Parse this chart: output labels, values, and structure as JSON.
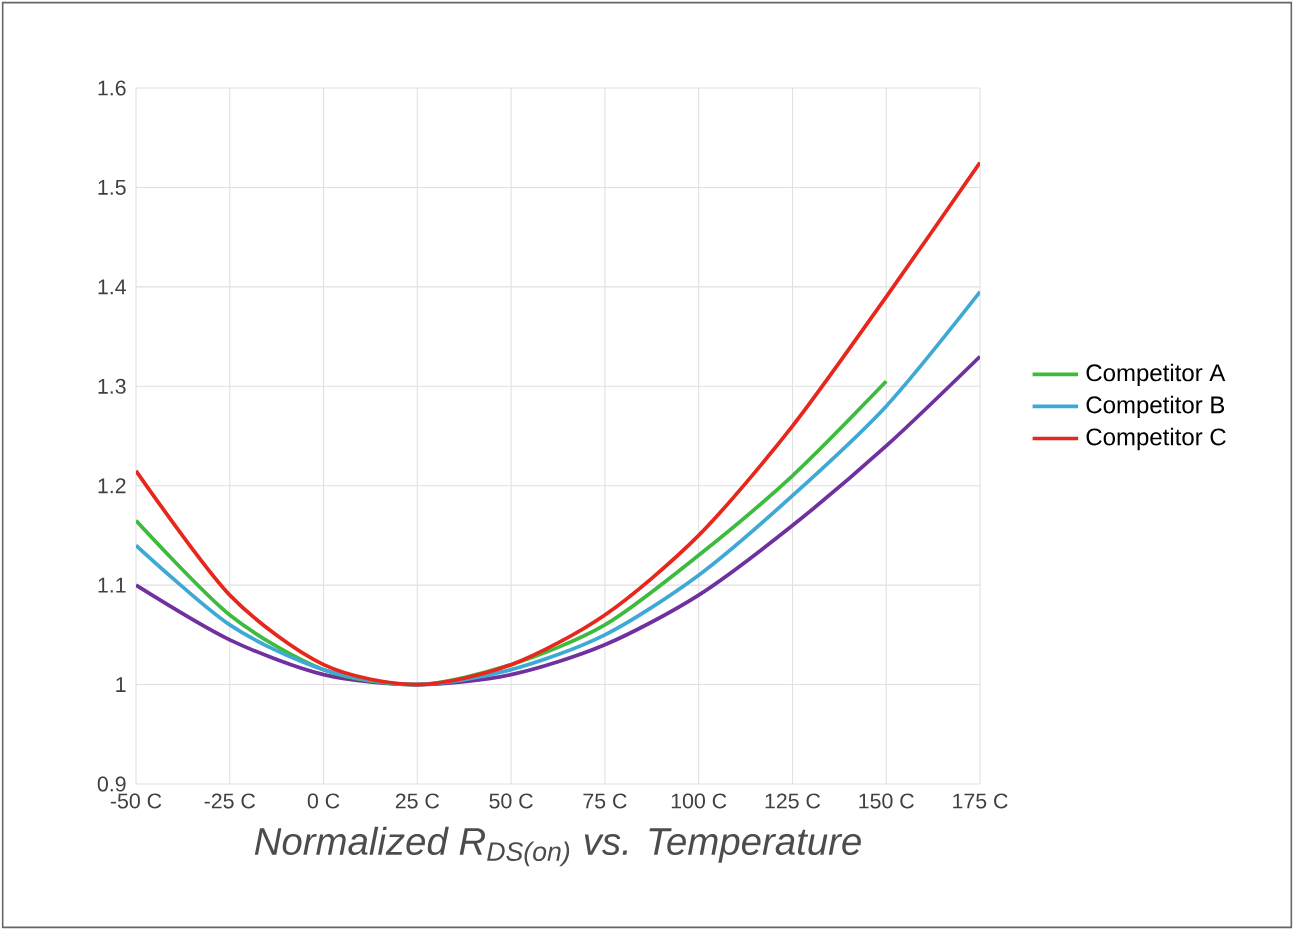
{
  "chart_data": {
    "type": "line",
    "xlabel": "Normalized R$_{DS(on)}$ vs. Temperature",
    "xlim": [
      -50,
      175
    ],
    "ylim": [
      0.9,
      1.6
    ],
    "xticks": [
      {
        "value": -50,
        "label": "-50 C"
      },
      {
        "value": -25,
        "label": "-25 C"
      },
      {
        "value": 0,
        "label": "0 C"
      },
      {
        "value": 25,
        "label": "25 C"
      },
      {
        "value": 50,
        "label": "50 C"
      },
      {
        "value": 75,
        "label": "75 C"
      },
      {
        "value": 100,
        "label": "100 C"
      },
      {
        "value": 125,
        "label": "125 C"
      },
      {
        "value": 150,
        "label": "150 C"
      },
      {
        "value": 175,
        "label": "175 C"
      }
    ],
    "yticks": [
      {
        "value": 0.9,
        "label": "0.9"
      },
      {
        "value": 1,
        "label": "1"
      },
      {
        "value": 1.1,
        "label": "1.1"
      },
      {
        "value": 1.2,
        "label": "1.2"
      },
      {
        "value": 1.3,
        "label": "1.3"
      },
      {
        "value": 1.4,
        "label": "1.4"
      },
      {
        "value": 1.5,
        "label": "1.5"
      },
      {
        "value": 1.6,
        "label": "1.6"
      }
    ],
    "grid": true,
    "legend": "right",
    "marker": "none",
    "line_style": "solid",
    "series": [
      {
        "color": "#7030a0",
        "x": [
          -50,
          -25,
          0,
          25,
          50,
          75,
          100,
          125,
          150,
          175
        ],
        "values": [
          1.1,
          1.045,
          1.01,
          1.0,
          1.01,
          1.04,
          1.09,
          1.16,
          1.24,
          1.33
        ]
      },
      {
        "name": "Competitor A",
        "color": "#3dbb3d",
        "x": [
          -50,
          -25,
          0,
          25,
          50,
          75,
          100,
          125,
          150
        ],
        "values": [
          1.165,
          1.07,
          1.015,
          1.0,
          1.02,
          1.06,
          1.13,
          1.21,
          1.305
        ]
      },
      {
        "name": "Competitor B",
        "color": "#3fa9d6",
        "x": [
          -50,
          -25,
          0,
          25,
          50,
          75,
          100,
          125,
          150,
          175
        ],
        "values": [
          1.14,
          1.06,
          1.015,
          1.0,
          1.015,
          1.05,
          1.11,
          1.19,
          1.28,
          1.395
        ]
      },
      {
        "name": "Competitor C",
        "color": "#e8261c",
        "x": [
          -50,
          -25,
          0,
          25,
          50,
          75,
          100,
          125,
          150,
          175
        ],
        "values": [
          1.215,
          1.09,
          1.02,
          1.0,
          1.02,
          1.07,
          1.15,
          1.26,
          1.39,
          1.525
        ]
      }
    ]
  }
}
